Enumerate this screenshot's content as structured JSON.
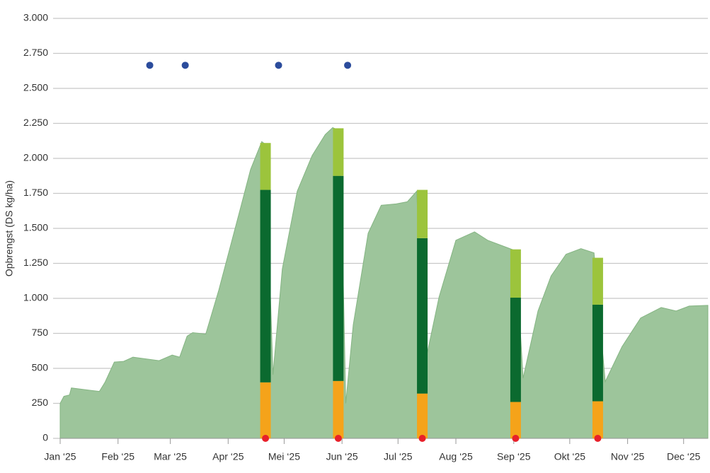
{
  "chart_data": {
    "type": "area",
    "y_label": "Opbrengst (DS kg/ha)",
    "xlim": [
      0,
      347
    ],
    "xticks": [
      {
        "value": 0,
        "label": "Jan ‘25"
      },
      {
        "value": 31,
        "label": "Feb ‘25"
      },
      {
        "value": 59,
        "label": "Mar ‘25"
      },
      {
        "value": 90,
        "label": "Apr ‘25"
      },
      {
        "value": 120,
        "label": "Mei ‘25"
      },
      {
        "value": 151,
        "label": "Jun ‘25"
      },
      {
        "value": 181,
        "label": "Jul ‘25"
      },
      {
        "value": 212,
        "label": "Aug ‘25"
      },
      {
        "value": 243,
        "label": "Sep ‘25"
      },
      {
        "value": 273,
        "label": "Okt ‘25"
      },
      {
        "value": 304,
        "label": "Nov ‘25"
      },
      {
        "value": 334,
        "label": "Dec ‘25"
      }
    ],
    "ylim": [
      0,
      3000
    ],
    "yticks": [
      0,
      250,
      500,
      750,
      {
        "value": 1000,
        "label": "1.000"
      },
      {
        "value": 1250,
        "label": "1.250"
      },
      {
        "value": 1500,
        "label": "1.500"
      },
      {
        "value": 1750,
        "label": "1.750"
      },
      {
        "value": 2000,
        "label": "2.000"
      },
      {
        "value": 2250,
        "label": "2.250"
      },
      {
        "value": 2500,
        "label": "2.500"
      },
      {
        "value": 2750,
        "label": "2.750"
      },
      {
        "value": 3000,
        "label": "3.000"
      }
    ],
    "grid": true,
    "area": {
      "color": "#9dc59b",
      "x": [
        0,
        2,
        5,
        6,
        21,
        24,
        29,
        34,
        39,
        53,
        60,
        64,
        68,
        71,
        78,
        85,
        97,
        102,
        108,
        110,
        114,
        119,
        127,
        135,
        142,
        146,
        150,
        153,
        157,
        165,
        172,
        180,
        186,
        191,
        195,
        203,
        212,
        222,
        229,
        239,
        244,
        248,
        256,
        263,
        271,
        279,
        286,
        292,
        301,
        311,
        322,
        330,
        337,
        347
      ],
      "values": [
        250,
        300,
        310,
        360,
        335,
        400,
        545,
        550,
        580,
        555,
        595,
        580,
        730,
        755,
        745,
        1060,
        1665,
        1920,
        2120,
        2100,
        455,
        1210,
        1765,
        2020,
        2170,
        2220,
        2195,
        250,
        810,
        1465,
        1665,
        1675,
        1690,
        1765,
        505,
        1010,
        1415,
        1475,
        1415,
        1365,
        1340,
        430,
        910,
        1160,
        1315,
        1355,
        1325,
        405,
        655,
        860,
        935,
        910,
        945,
        950
      ]
    },
    "bars": {
      "x": [
        110,
        149,
        194,
        244,
        288
      ],
      "segments": [
        {
          "color": "#f5a31a",
          "values": [
            400,
            410,
            320,
            260,
            265
          ]
        },
        {
          "color": "#0b6a2f",
          "values": [
            1375,
            1465,
            1110,
            745,
            690
          ]
        },
        {
          "color": "#9cc43c",
          "values": [
            335,
            340,
            345,
            345,
            335
          ]
        }
      ]
    },
    "markers": [
      {
        "color": "#2b4c9c",
        "x": [
          48,
          67,
          117,
          154
        ],
        "values": [
          2665,
          2665,
          2665,
          2665
        ]
      },
      {
        "color": "#e8202a",
        "x": [
          110,
          149,
          194,
          244,
          288
        ],
        "values": [
          0,
          0,
          0,
          0,
          0
        ]
      }
    ]
  }
}
